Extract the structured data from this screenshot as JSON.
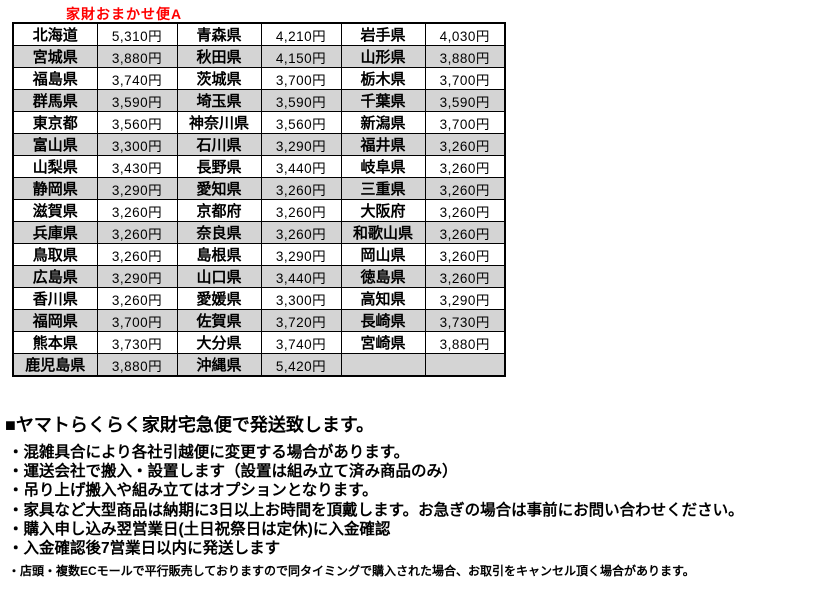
{
  "title": "家財おまかせ便A",
  "colors": {
    "title_red": "#ff0000",
    "row_gray": "#d4d4d4",
    "border_black": "#000000"
  },
  "table": {
    "columns_per_row": [
      "prefecture",
      "price",
      "prefecture",
      "price",
      "prefecture",
      "price"
    ],
    "rows": [
      [
        "北海道",
        "5,310円",
        "青森県",
        "4,210円",
        "岩手県",
        "4,030円"
      ],
      [
        "宮城県",
        "3,880円",
        "秋田県",
        "4,150円",
        "山形県",
        "3,880円"
      ],
      [
        "福島県",
        "3,740円",
        "茨城県",
        "3,700円",
        "栃木県",
        "3,700円"
      ],
      [
        "群馬県",
        "3,590円",
        "埼玉県",
        "3,590円",
        "千葉県",
        "3,590円"
      ],
      [
        "東京都",
        "3,560円",
        "神奈川県",
        "3,560円",
        "新潟県",
        "3,700円"
      ],
      [
        "富山県",
        "3,300円",
        "石川県",
        "3,290円",
        "福井県",
        "3,260円"
      ],
      [
        "山梨県",
        "3,430円",
        "長野県",
        "3,440円",
        "岐阜県",
        "3,260円"
      ],
      [
        "静岡県",
        "3,290円",
        "愛知県",
        "3,260円",
        "三重県",
        "3,260円"
      ],
      [
        "滋賀県",
        "3,260円",
        "京都府",
        "3,260円",
        "大阪府",
        "3,260円"
      ],
      [
        "兵庫県",
        "3,260円",
        "奈良県",
        "3,260円",
        "和歌山県",
        "3,260円"
      ],
      [
        "鳥取県",
        "3,260円",
        "島根県",
        "3,290円",
        "岡山県",
        "3,260円"
      ],
      [
        "広島県",
        "3,290円",
        "山口県",
        "3,440円",
        "徳島県",
        "3,260円"
      ],
      [
        "香川県",
        "3,260円",
        "愛媛県",
        "3,300円",
        "高知県",
        "3,290円"
      ],
      [
        "福岡県",
        "3,700円",
        "佐賀県",
        "3,720円",
        "長崎県",
        "3,730円"
      ],
      [
        "熊本県",
        "3,730円",
        "大分県",
        "3,740円",
        "宮崎県",
        "3,880円"
      ],
      [
        "鹿児島県",
        "3,880円",
        "沖縄県",
        "5,420円",
        "",
        ""
      ]
    ]
  },
  "notes": {
    "heading": "■ヤマトらくらく家財宅急便で発送致します。",
    "bullets": [
      "・混雑具合により各社引越便に変更する場合があります。",
      "・運送会社で搬入・設置します（設置は組み立て済み商品のみ）",
      "・吊り上げ搬入や組み立てはオプションとなります。",
      "・家具など大型商品は納期に3日以上お時間を頂戴します。お急ぎの場合は事前にお問い合わせください。",
      "・購入申し込み翌営業日(土日祝祭日は定休)に入金確認",
      "・入金確認後7営業日以内に発送します"
    ],
    "small_note": "・店頭・複数ECモールで平行販売しておりますので同タイミングで購入された場合、お取引をキャンセル頂く場合があります。"
  }
}
